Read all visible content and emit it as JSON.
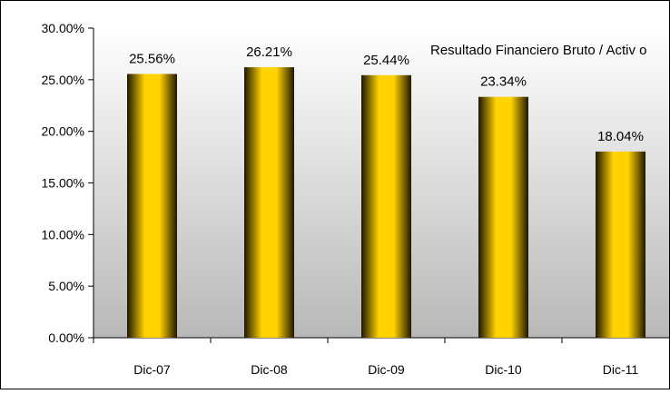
{
  "chart_data": {
    "type": "bar",
    "title": "Resultado Financiero Bruto / Activ o",
    "xlabel": "",
    "ylabel": "",
    "categories": [
      "Dic-07",
      "Dic-08",
      "Dic-09",
      "Dic-10",
      "Dic-11"
    ],
    "series": [
      {
        "values": [
          25.56,
          26.21,
          25.44,
          23.34,
          18.04
        ]
      }
    ],
    "data_labels": [
      "25.56%",
      "26.21%",
      "25.44%",
      "23.34%",
      "18.04%"
    ],
    "ylim": [
      0,
      30
    ],
    "yticks": [
      0,
      5,
      10,
      15,
      20,
      25,
      30
    ],
    "ytick_labels": [
      "0.00%",
      "5.00%",
      "10.00%",
      "15.00%",
      "20.00%",
      "25.00%",
      "30.00%"
    ],
    "grid": false,
    "legend": "none",
    "colors": {
      "bar_center": "#FFD200",
      "bar_edge": "#1E1600",
      "plot_top": "#FFFFFF",
      "plot_bottom": "#B8B8B8",
      "axis": "#000000"
    }
  }
}
